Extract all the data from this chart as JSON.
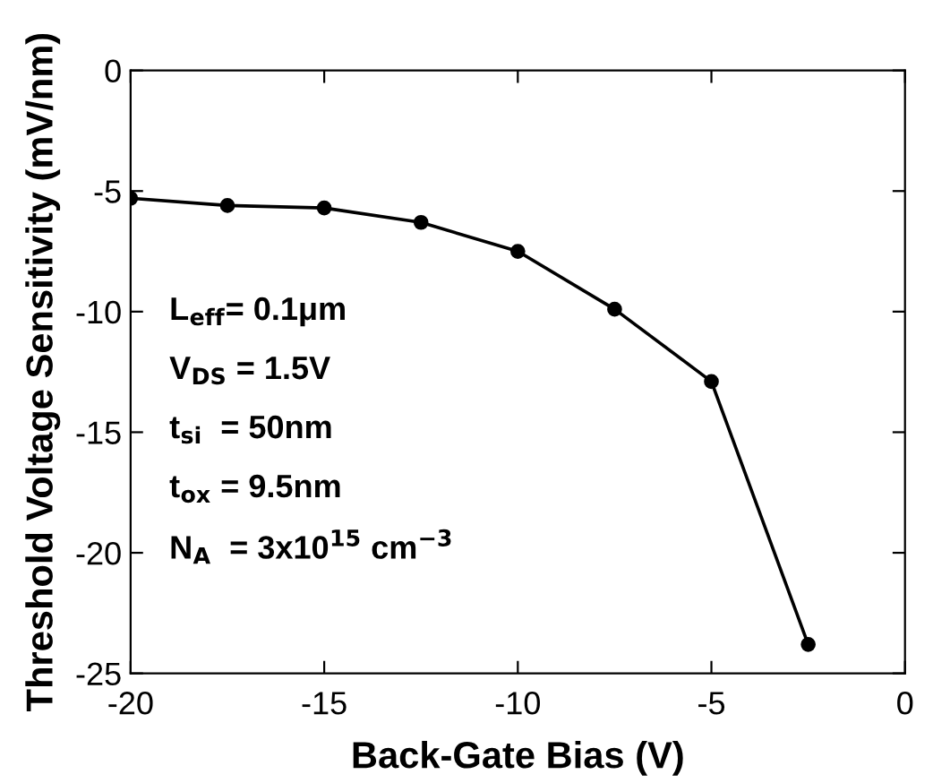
{
  "chart_data": {
    "type": "line",
    "xlabel": "Back-Gate Bias (V)",
    "ylabel": "Threshold Voltage Sensitivity (mV/nm)",
    "x": [
      -20,
      -17.5,
      -15,
      -12.5,
      -10,
      -7.5,
      -5,
      -2.5
    ],
    "series": [
      {
        "color": "#000000",
        "values": [
          -5.3,
          -5.6,
          -5.7,
          -6.3,
          -7.5,
          -9.9,
          -12.9,
          -23.8
        ]
      }
    ],
    "xlim": [
      -20,
      0
    ],
    "xticks": [
      -20,
      -15,
      -10,
      -5,
      0
    ],
    "ylim": [
      -25,
      0
    ],
    "yticks": [
      0,
      -5,
      -10,
      -15,
      -20,
      -25
    ],
    "marker": "circle",
    "line_style": "solid",
    "grid": false,
    "legend": false,
    "annotations": [
      "L$_{eff}$= 0.1μm",
      "V$_{DS}$ = 1.5V",
      "t$_{si}$  = 50nm",
      "t$_{ox}$ = 9.5nm",
      "N$_{A}$  = 3x10$^{15}$ cm$^{−3}$"
    ]
  }
}
